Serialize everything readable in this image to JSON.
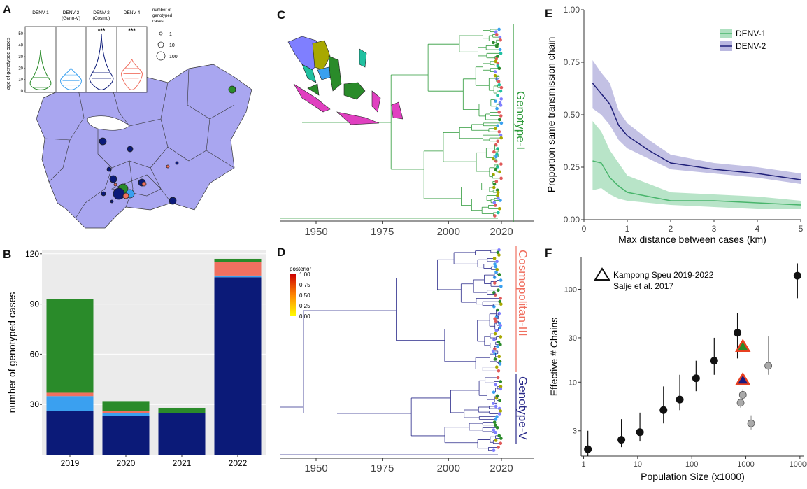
{
  "panel_labels": {
    "a": "A",
    "b": "B",
    "c": "C",
    "d": "D",
    "e": "E",
    "f": "F"
  },
  "colors": {
    "denv1": "#2a8b2a",
    "denv2_genov": "#3aa0f0",
    "denv2_cosmo": "#0b1a78",
    "denv4": "#f07060",
    "map_fill": "#a9a6f0",
    "denv1_line": "#49b56c",
    "denv2_line": "#20207a"
  },
  "chart_data": [
    {
      "id": "A",
      "type": "violin",
      "groups": [
        {
          "name": "DENV-1",
          "sig": "",
          "median": 7
        },
        {
          "name": "DENV-2\n(Geno-V)",
          "sig": "",
          "median": 9
        },
        {
          "name": "DENV-2\n(Cosmo)",
          "sig": "***",
          "median": 11
        },
        {
          "name": "DENV-4",
          "sig": "***",
          "median": 15
        }
      ],
      "ylabel": "age of genotyped cases",
      "yticks": [
        0,
        10,
        20,
        30,
        40,
        50
      ],
      "ylim": [
        0,
        55
      ],
      "size_legend": {
        "title": "number of\ngenotyped\ncases",
        "values": [
          "1",
          "10",
          "100"
        ]
      }
    },
    {
      "id": "B",
      "type": "bar",
      "categories": [
        "2019",
        "2020",
        "2021",
        "2022"
      ],
      "series": [
        {
          "name": "DENV-2 (Cosmo)",
          "values": [
            26,
            23,
            25,
            106
          ]
        },
        {
          "name": "DENV-2 (Geno-V)",
          "values": [
            9,
            2,
            0,
            1
          ]
        },
        {
          "name": "DENV-4",
          "values": [
            2,
            1,
            0,
            8
          ]
        },
        {
          "name": "DENV-1",
          "values": [
            56,
            6,
            3,
            2
          ]
        }
      ],
      "ylabel": "number of genotyped cases",
      "yticks": [
        30,
        60,
        90,
        120
      ],
      "ylim": [
        0,
        122
      ]
    },
    {
      "id": "C",
      "type": "tree",
      "xticks": [
        "1950",
        "1975",
        "2000",
        "2020"
      ],
      "clade_label": "Genotype-I"
    },
    {
      "id": "D",
      "type": "tree",
      "xticks": [
        "1950",
        "1975",
        "2000",
        "2020"
      ],
      "clade_labels": [
        "Cosmopolitan-III",
        "Genotype-V"
      ],
      "legend_title": "posterior",
      "legend_values": [
        "1.00",
        "0.75",
        "0.50",
        "0.25",
        "0.00"
      ]
    },
    {
      "id": "E",
      "type": "line",
      "x": [
        0.2,
        0.4,
        0.6,
        0.8,
        1,
        1.5,
        2,
        3,
        4,
        5
      ],
      "series": [
        {
          "name": "DENV-1",
          "values": [
            0.28,
            0.27,
            0.2,
            0.16,
            0.13,
            0.11,
            0.09,
            0.09,
            0.08,
            0.07
          ],
          "lower": [
            0.14,
            0.15,
            0.12,
            0.1,
            0.09,
            0.08,
            0.07,
            0.06,
            0.05,
            0.05
          ],
          "upper": [
            0.47,
            0.42,
            0.33,
            0.27,
            0.21,
            0.17,
            0.13,
            0.12,
            0.11,
            0.09
          ]
        },
        {
          "name": "DENV-2",
          "values": [
            0.65,
            0.6,
            0.55,
            0.45,
            0.4,
            0.33,
            0.27,
            0.24,
            0.22,
            0.19
          ],
          "lower": [
            0.53,
            0.5,
            0.45,
            0.38,
            0.34,
            0.29,
            0.24,
            0.22,
            0.2,
            0.17
          ],
          "upper": [
            0.76,
            0.7,
            0.65,
            0.52,
            0.46,
            0.38,
            0.31,
            0.27,
            0.25,
            0.22
          ]
        }
      ],
      "xlabel": "Max distance between cases (km)",
      "ylabel": "Proportion same transmission chain",
      "xticks": [
        0,
        1,
        2,
        3,
        4,
        5
      ],
      "yticks": [
        "0.00",
        "0.25",
        "0.50",
        "0.75",
        "1.00"
      ],
      "xlim": [
        0,
        5
      ],
      "ylim": [
        0,
        1
      ],
      "legend_placement": "top-right"
    },
    {
      "id": "F",
      "type": "scatter",
      "log_x": true,
      "log_y": true,
      "xlabel": "Population Size (x1000)",
      "ylabel": "Effective # Chains",
      "xticks": [
        {
          "v": 1,
          "l": "1"
        },
        {
          "v": 10,
          "l": "10"
        },
        {
          "v": 100,
          "l": "100"
        },
        {
          "v": 1000,
          "l": "1000"
        },
        {
          "v": 10000,
          "l": "10000"
        }
      ],
      "yticks": [
        {
          "v": 3,
          "l": "3"
        },
        {
          "v": 10,
          "l": "10"
        },
        {
          "v": 30,
          "l": "30"
        },
        {
          "v": 100,
          "l": "100"
        }
      ],
      "xlim": [
        0.9,
        12000
      ],
      "ylim": [
        1.6,
        220
      ],
      "legend": [
        {
          "label": "Kampong Speu 2019-2022",
          "marker": "triangle"
        },
        {
          "label": "Salje et al. 2017",
          "marker": "none"
        }
      ],
      "black_points": [
        {
          "x": 1.2,
          "y": 1.9,
          "lo": 1.6,
          "hi": 3
        },
        {
          "x": 5,
          "y": 2.4,
          "lo": 2.0,
          "hi": 4
        },
        {
          "x": 11,
          "y": 2.9,
          "lo": 2.3,
          "hi": 4.7
        },
        {
          "x": 30,
          "y": 5,
          "lo": 3.6,
          "hi": 9
        },
        {
          "x": 60,
          "y": 6.5,
          "lo": 5,
          "hi": 12
        },
        {
          "x": 120,
          "y": 11,
          "lo": 8,
          "hi": 17
        },
        {
          "x": 260,
          "y": 17,
          "lo": 12,
          "hi": 30
        },
        {
          "x": 700,
          "y": 34,
          "lo": 18,
          "hi": 55
        },
        {
          "x": 9000,
          "y": 140,
          "lo": 80,
          "hi": 190
        }
      ],
      "gray_points": [
        {
          "x": 800,
          "y": 6.0,
          "lo": 5.3,
          "hi": 7
        },
        {
          "x": 880,
          "y": 7.3,
          "lo": 6.5,
          "hi": 8.4
        },
        {
          "x": 1250,
          "y": 3.6,
          "lo": 3.1,
          "hi": 4.4
        },
        {
          "x": 2600,
          "y": 15,
          "lo": 12,
          "hi": 31
        }
      ],
      "triangles": [
        {
          "x": 880,
          "y": 24,
          "fill": "#2a8b2a"
        },
        {
          "x": 880,
          "y": 10.5,
          "fill": "#1a1a80"
        }
      ]
    }
  ]
}
